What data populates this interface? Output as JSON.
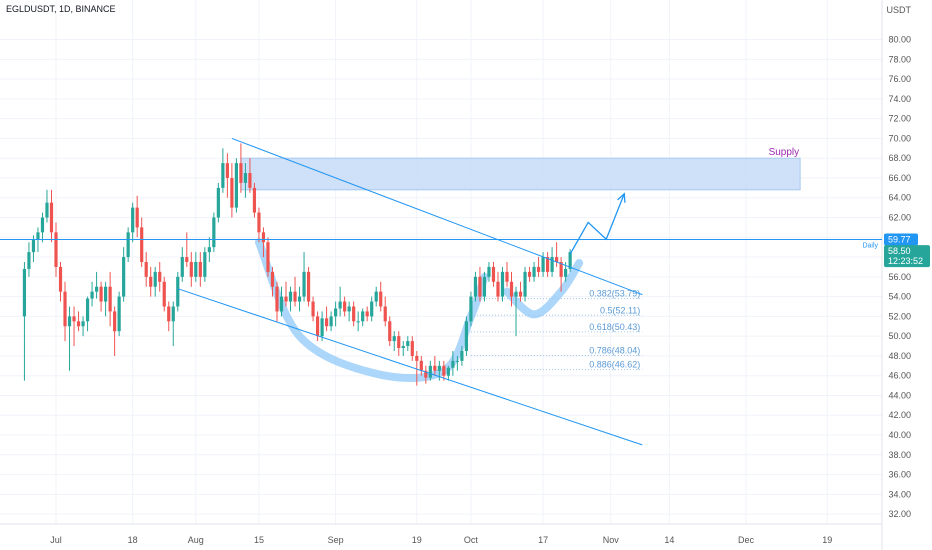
{
  "header": {
    "title": "EGLDUSDT, 1D, BINANCE"
  },
  "price_axis": {
    "currency": "USDT",
    "current_price": "58.50",
    "countdown": "12:23:52",
    "daily_level_label": "59.77",
    "daily_tag": "Daily"
  },
  "colors": {
    "up": "#26a69a",
    "down": "#ef5350",
    "drawing": "#2196f3",
    "pattern": "#90caf9",
    "zone": "#c5dcf7",
    "zone_text": "#9c27b0",
    "fib_text": "#5b9bd5",
    "axis_text": "#555555",
    "grid": "#f0f3fa"
  },
  "chart_data": {
    "type": "candlestick",
    "symbol": "EGLDUSDT",
    "interval": "1D",
    "exchange": "BINANCE",
    "ylim": [
      31,
      84
    ],
    "y_ticks": [
      "32.00",
      "34.00",
      "36.00",
      "38.00",
      "40.00",
      "42.00",
      "44.00",
      "46.00",
      "48.00",
      "50.00",
      "52.00",
      "54.00",
      "56.00",
      "58.00",
      "60.00",
      "62.00",
      "64.00",
      "66.00",
      "68.00",
      "70.00",
      "72.00",
      "74.00",
      "76.00",
      "78.00",
      "80.00"
    ],
    "x_ticks": [
      "Jul",
      "18",
      "Aug",
      "15",
      "Sep",
      "19",
      "Oct",
      "17",
      "Nov",
      "14",
      "Dec",
      "19"
    ],
    "x_tick_dates": [
      "2022-07-01",
      "2022-07-18",
      "2022-08-01",
      "2022-08-15",
      "2022-09-01",
      "2022-09-19",
      "2022-10-01",
      "2022-10-17",
      "2022-11-01",
      "2022-11-14",
      "2022-12-01",
      "2022-12-19"
    ],
    "candles": [
      [
        "2022-06-24",
        52.0,
        57.5,
        45.5,
        56.8
      ],
      [
        "2022-06-25",
        56.8,
        59.5,
        56.0,
        58.5
      ],
      [
        "2022-06-26",
        58.5,
        60.2,
        57.5,
        59.8
      ],
      [
        "2022-06-27",
        59.8,
        61.0,
        58.5,
        60.5
      ],
      [
        "2022-06-28",
        60.5,
        62.5,
        59.5,
        62.0
      ],
      [
        "2022-06-29",
        62.0,
        64.8,
        61.5,
        63.5
      ],
      [
        "2022-06-30",
        63.5,
        64.8,
        59.5,
        60.5
      ],
      [
        "2022-07-01",
        60.5,
        61.5,
        56.0,
        57.0
      ],
      [
        "2022-07-02",
        57.0,
        57.5,
        53.5,
        54.5
      ],
      [
        "2022-07-03",
        54.5,
        55.5,
        49.5,
        51.0
      ],
      [
        "2022-07-04",
        51.0,
        53.0,
        46.5,
        52.0
      ],
      [
        "2022-07-05",
        52.0,
        53.0,
        49.0,
        51.5
      ],
      [
        "2022-07-06",
        51.5,
        52.5,
        50.5,
        51.0
      ],
      [
        "2022-07-07",
        51.0,
        52.0,
        50.0,
        51.5
      ],
      [
        "2022-07-08",
        51.5,
        54.0,
        50.5,
        53.8
      ],
      [
        "2022-07-09",
        53.8,
        55.5,
        53.0,
        54.5
      ],
      [
        "2022-07-10",
        54.5,
        56.5,
        53.8,
        55.0
      ],
      [
        "2022-07-11",
        55.0,
        55.5,
        52.5,
        53.5
      ],
      [
        "2022-07-12",
        53.5,
        55.5,
        52.0,
        55.0
      ],
      [
        "2022-07-13",
        55.0,
        56.5,
        51.0,
        52.5
      ],
      [
        "2022-07-14",
        52.5,
        53.0,
        48.0,
        50.5
      ],
      [
        "2022-07-15",
        50.5,
        54.5,
        50.0,
        54.0
      ],
      [
        "2022-07-16",
        54.0,
        59.0,
        53.5,
        58.0
      ],
      [
        "2022-07-17",
        58.0,
        61.0,
        57.5,
        60.5
      ],
      [
        "2022-07-18",
        60.5,
        63.5,
        59.5,
        63.0
      ],
      [
        "2022-07-19",
        63.0,
        64.2,
        60.0,
        61.0
      ],
      [
        "2022-07-20",
        61.0,
        62.0,
        57.0,
        57.5
      ],
      [
        "2022-07-21",
        57.5,
        58.5,
        55.0,
        56.0
      ],
      [
        "2022-07-22",
        56.0,
        57.0,
        54.0,
        55.0
      ],
      [
        "2022-07-23",
        55.0,
        57.0,
        54.0,
        56.5
      ],
      [
        "2022-07-24",
        56.5,
        57.5,
        54.5,
        55.5
      ],
      [
        "2022-07-25",
        55.5,
        56.0,
        52.5,
        53.0
      ],
      [
        "2022-07-26",
        53.0,
        53.5,
        50.5,
        51.5
      ],
      [
        "2022-07-27",
        51.5,
        53.5,
        49.0,
        53.0
      ],
      [
        "2022-07-28",
        53.0,
        56.5,
        52.5,
        56.0
      ],
      [
        "2022-07-29",
        56.0,
        59.0,
        55.5,
        58.0
      ],
      [
        "2022-07-30",
        58.0,
        60.5,
        57.0,
        57.5
      ],
      [
        "2022-07-31",
        57.5,
        58.5,
        55.0,
        56.0
      ],
      [
        "2022-08-01",
        56.0,
        58.5,
        55.5,
        57.5
      ],
      [
        "2022-08-02",
        57.5,
        58.5,
        55.0,
        56.0
      ],
      [
        "2022-08-03",
        56.0,
        59.0,
        55.5,
        58.5
      ],
      [
        "2022-08-04",
        58.5,
        60.0,
        57.5,
        59.0
      ],
      [
        "2022-08-05",
        59.0,
        62.5,
        58.5,
        62.0
      ],
      [
        "2022-08-06",
        62.0,
        65.5,
        61.5,
        65.0
      ],
      [
        "2022-08-07",
        65.0,
        69.0,
        64.5,
        67.5
      ],
      [
        "2022-08-08",
        67.5,
        68.5,
        64.0,
        66.0
      ],
      [
        "2022-08-09",
        66.0,
        67.5,
        62.0,
        63.0
      ],
      [
        "2022-08-10",
        63.0,
        68.0,
        62.5,
        67.5
      ],
      [
        "2022-08-11",
        67.5,
        69.5,
        64.5,
        65.5
      ],
      [
        "2022-08-12",
        65.5,
        67.5,
        64.0,
        66.5
      ],
      [
        "2022-08-13",
        66.5,
        68.0,
        64.5,
        65.0
      ],
      [
        "2022-08-14",
        65.0,
        65.5,
        62.0,
        62.5
      ],
      [
        "2022-08-15",
        62.5,
        63.0,
        59.5,
        60.5
      ],
      [
        "2022-08-16",
        60.5,
        61.0,
        58.0,
        59.5
      ],
      [
        "2022-08-17",
        59.5,
        60.0,
        56.0,
        56.5
      ],
      [
        "2022-08-18",
        56.5,
        57.0,
        54.0,
        55.0
      ],
      [
        "2022-08-19",
        55.0,
        55.5,
        51.5,
        52.5
      ],
      [
        "2022-08-20",
        52.5,
        55.0,
        52.0,
        54.0
      ],
      [
        "2022-08-21",
        54.0,
        55.5,
        53.0,
        53.5
      ],
      [
        "2022-08-22",
        53.5,
        55.0,
        52.5,
        54.5
      ],
      [
        "2022-08-23",
        54.5,
        56.0,
        53.0,
        53.5
      ],
      [
        "2022-08-24",
        53.5,
        55.0,
        52.5,
        54.0
      ],
      [
        "2022-08-25",
        54.0,
        58.5,
        53.5,
        56.5
      ],
      [
        "2022-08-26",
        56.5,
        57.0,
        53.0,
        53.5
      ],
      [
        "2022-08-27",
        53.5,
        54.0,
        51.5,
        52.0
      ],
      [
        "2022-08-28",
        52.0,
        52.5,
        49.5,
        50.0
      ],
      [
        "2022-08-29",
        50.0,
        52.5,
        49.5,
        51.8
      ],
      [
        "2022-08-30",
        51.8,
        53.0,
        50.5,
        51.0
      ],
      [
        "2022-08-31",
        51.0,
        52.5,
        50.5,
        52.0
      ],
      [
        "2022-09-01",
        52.0,
        53.5,
        51.0,
        52.8
      ],
      [
        "2022-09-02",
        52.8,
        55.0,
        52.0,
        53.5
      ],
      [
        "2022-09-03",
        53.5,
        54.0,
        52.0,
        52.5
      ],
      [
        "2022-09-04",
        52.5,
        53.5,
        51.5,
        53.0
      ],
      [
        "2022-09-05",
        53.0,
        53.5,
        51.0,
        51.5
      ],
      [
        "2022-09-06",
        51.5,
        52.5,
        50.5,
        51.5
      ],
      [
        "2022-09-07",
        51.5,
        52.8,
        51.0,
        52.5
      ],
      [
        "2022-09-08",
        52.5,
        53.0,
        51.5,
        52.0
      ],
      [
        "2022-09-09",
        52.0,
        54.0,
        51.5,
        53.5
      ],
      [
        "2022-09-10",
        53.5,
        55.0,
        53.0,
        54.5
      ],
      [
        "2022-09-11",
        54.5,
        55.5,
        52.5,
        53.0
      ],
      [
        "2022-09-12",
        53.0,
        54.0,
        51.0,
        51.5
      ],
      [
        "2022-09-13",
        51.5,
        52.0,
        49.0,
        49.5
      ],
      [
        "2022-09-14",
        49.5,
        50.5,
        48.5,
        50.0
      ],
      [
        "2022-09-15",
        50.0,
        50.5,
        48.0,
        48.8
      ],
      [
        "2022-09-16",
        48.8,
        49.5,
        48.0,
        49.0
      ],
      [
        "2022-09-17",
        49.0,
        50.0,
        48.5,
        49.5
      ],
      [
        "2022-09-18",
        49.5,
        50.0,
        47.5,
        48.0
      ],
      [
        "2022-09-19",
        48.0,
        48.5,
        45.0,
        47.5
      ],
      [
        "2022-09-20",
        47.5,
        48.0,
        46.0,
        46.5
      ],
      [
        "2022-09-21",
        46.5,
        47.0,
        45.2,
        45.8
      ],
      [
        "2022-09-22",
        45.8,
        47.5,
        45.5,
        47.0
      ],
      [
        "2022-09-23",
        47.0,
        48.0,
        46.0,
        46.5
      ],
      [
        "2022-09-24",
        46.5,
        47.5,
        45.5,
        47.0
      ],
      [
        "2022-09-25",
        47.0,
        47.5,
        45.5,
        46.0
      ],
      [
        "2022-09-26",
        46.0,
        47.0,
        45.5,
        46.8
      ],
      [
        "2022-09-27",
        46.8,
        48.5,
        46.0,
        47.5
      ],
      [
        "2022-09-28",
        47.5,
        48.0,
        46.5,
        47.5
      ],
      [
        "2022-09-29",
        47.5,
        49.0,
        47.0,
        48.5
      ],
      [
        "2022-09-30",
        48.5,
        52.0,
        48.0,
        51.5
      ],
      [
        "2022-10-01",
        51.5,
        54.5,
        51.0,
        54.0
      ],
      [
        "2022-10-02",
        54.0,
        56.5,
        53.5,
        56.0
      ],
      [
        "2022-10-03",
        56.0,
        57.0,
        53.5,
        54.0
      ],
      [
        "2022-10-04",
        54.0,
        56.5,
        53.5,
        56.0
      ],
      [
        "2022-10-05",
        56.0,
        57.5,
        55.5,
        57.0
      ],
      [
        "2022-10-06",
        57.0,
        57.5,
        55.0,
        55.5
      ],
      [
        "2022-10-07",
        55.5,
        56.5,
        53.5,
        54.0
      ],
      [
        "2022-10-08",
        54.0,
        57.0,
        53.5,
        56.5
      ],
      [
        "2022-10-09",
        56.5,
        57.5,
        55.0,
        55.5
      ],
      [
        "2022-10-10",
        55.5,
        56.5,
        53.0,
        54.0
      ],
      [
        "2022-10-11",
        54.0,
        55.0,
        50.0,
        54.5
      ],
      [
        "2022-10-12",
        54.5,
        55.5,
        53.5,
        54.0
      ],
      [
        "2022-10-13",
        54.0,
        57.0,
        53.5,
        56.5
      ],
      [
        "2022-10-14",
        56.5,
        57.0,
        55.5,
        56.0
      ],
      [
        "2022-10-15",
        56.0,
        57.5,
        55.5,
        57.0
      ],
      [
        "2022-10-16",
        57.0,
        58.0,
        56.0,
        56.5
      ],
      [
        "2022-10-17",
        56.5,
        58.5,
        56.0,
        58.0
      ],
      [
        "2022-10-18",
        58.0,
        58.5,
        56.0,
        56.5
      ],
      [
        "2022-10-19",
        56.5,
        59.0,
        56.0,
        58.0
      ],
      [
        "2022-10-20",
        58.0,
        59.5,
        57.0,
        57.5
      ],
      [
        "2022-10-21",
        57.5,
        58.0,
        54.5,
        56.0
      ],
      [
        "2022-10-22",
        56.0,
        57.5,
        55.5,
        56.8
      ],
      [
        "2022-10-23",
        56.8,
        58.8,
        56.5,
        58.5
      ]
    ],
    "supply_zone": {
      "label": "Supply",
      "top": 68.0,
      "bottom": 64.8,
      "from": "2022-08-11",
      "to": "2022-12-13"
    },
    "daily_level": {
      "value": 59.77,
      "label": "Daily"
    },
    "current_price": 58.5,
    "descending_channel": {
      "upper": {
        "from": [
          "2022-08-09",
          70.0
        ],
        "to": [
          "2022-11-08",
          54.2
        ]
      },
      "lower": {
        "from": [
          "2022-07-28",
          54.8
        ],
        "to": [
          "2022-11-08",
          39.0
        ]
      }
    },
    "fibonacci": [
      {
        "ratio": "0.382",
        "price": 53.79,
        "label": "0.382(53.79)"
      },
      {
        "ratio": "0.5",
        "price": 52.11,
        "label": "0.5(52.11)"
      },
      {
        "ratio": "0.618",
        "price": 50.43,
        "label": "0.618(50.43)"
      },
      {
        "ratio": "0.786",
        "price": 48.04,
        "label": "0.786(48.04)"
      },
      {
        "ratio": "0.886",
        "price": 46.62,
        "label": "0.886(46.62)"
      }
    ],
    "fib_range": {
      "from": "2022-10-01",
      "to": "2022-11-08"
    },
    "projection_path": [
      [
        "2022-10-23",
        58.3
      ],
      [
        "2022-10-27",
        61.5
      ],
      [
        "2022-10-31",
        59.8
      ],
      [
        "2022-11-04",
        64.4
      ]
    ],
    "pattern": "cup and handle",
    "cup_path": [
      [
        "2022-08-15",
        59.5
      ],
      [
        "2022-08-24",
        50.0
      ],
      [
        "2022-09-10",
        46.2
      ],
      [
        "2022-09-25",
        46.5
      ],
      [
        "2022-10-01",
        52.0
      ],
      [
        "2022-10-04",
        56.0
      ]
    ],
    "handle_path": [
      [
        "2022-10-09",
        54.5
      ],
      [
        "2022-10-15",
        52.2
      ],
      [
        "2022-10-21",
        54.5
      ],
      [
        "2022-10-25",
        57.4
      ]
    ]
  }
}
